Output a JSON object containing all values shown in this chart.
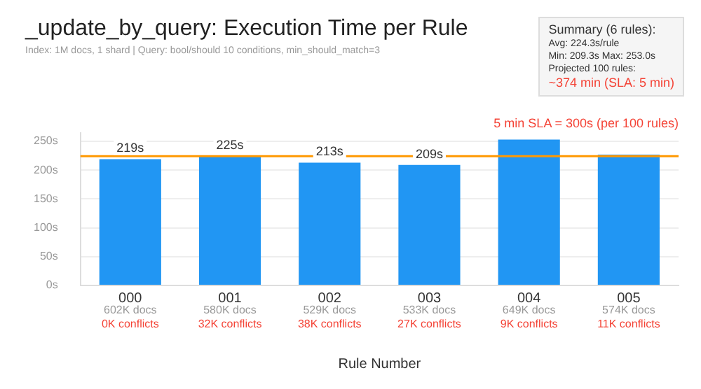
{
  "chart_data": {
    "type": "bar",
    "title": "_update_by_query: Execution Time per Rule",
    "subtitle": "Index: 1M docs, 1 shard | Query: bool/should 10 conditions, min_should_match=3",
    "xlabel": "Rule Number",
    "categories": [
      "000\n602K docs\n0K conflicts",
      "001\n580K docs\n32K conflicts",
      "002\n529K docs\n38K conflicts",
      "003\n533K docs\n27K conflicts",
      "004\n649K docs\n9K conflicts",
      "005\n574K docs\n11K conflicts"
    ],
    "values": [
      219,
      225,
      213,
      209,
      253,
      227
    ],
    "value_labels": [
      "219s",
      "225s",
      "213s",
      "209s",
      null,
      null
    ],
    "color": "#2196f3",
    "ylim": [
      0,
      265
    ],
    "yticks": [
      {
        "value": 0,
        "label": "0s"
      },
      {
        "value": 50,
        "label": "50s"
      },
      {
        "value": 100,
        "label": "100s"
      },
      {
        "value": 150,
        "label": "150s"
      },
      {
        "value": 200,
        "label": "200s"
      },
      {
        "value": 250,
        "label": "250s"
      }
    ],
    "grid": "y",
    "ref_lines": [
      {
        "axis": "y",
        "value": 224.3,
        "color": "#ff9800"
      }
    ],
    "annotations": [
      "5 min SLA = 300s (per 100 rules)",
      "Summary (6 rules):",
      "Avg: 224.3s/rule",
      "Min: 209.3s  Max: 253.0s",
      "Projected 100 rules:",
      "~374 min (SLA: 5 min)"
    ]
  }
}
